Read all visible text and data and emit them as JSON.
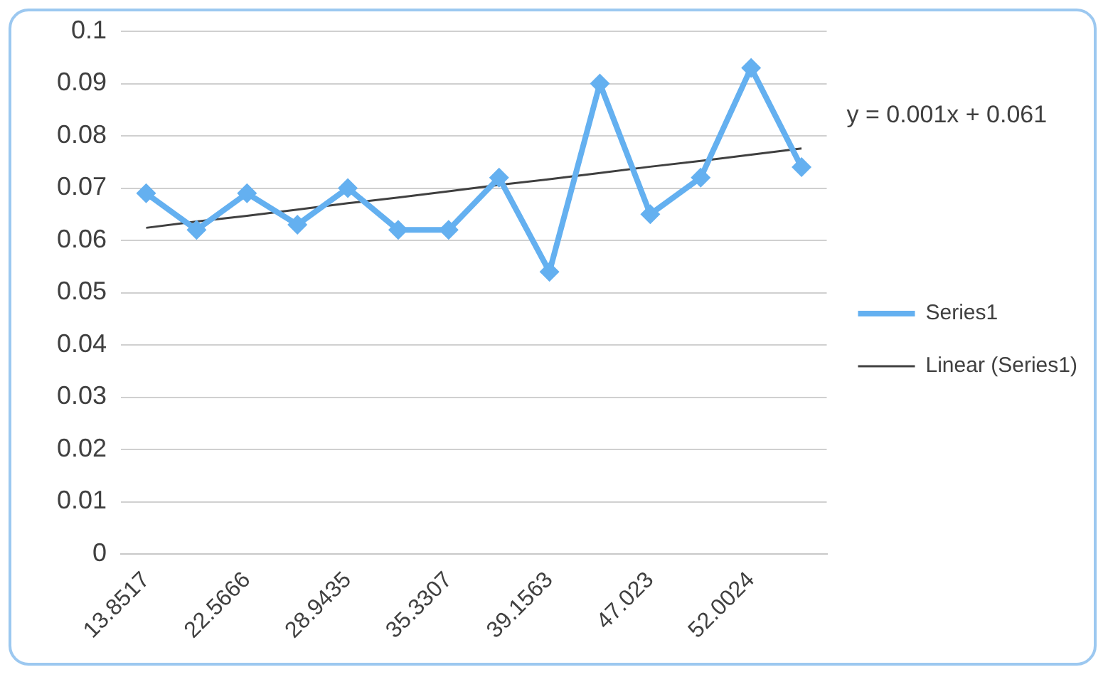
{
  "chart_data": {
    "type": "line",
    "categories": [
      "13.8517",
      null,
      "22.5666",
      null,
      "28.9435",
      null,
      "35.3307",
      null,
      "39.1563",
      null,
      "47.023",
      null,
      "52.0024",
      null
    ],
    "series": [
      {
        "name": "Series1",
        "color": "#64b0f0",
        "values": [
          0.069,
          0.062,
          0.069,
          0.063,
          0.07,
          0.062,
          0.062,
          0.072,
          0.054,
          0.09,
          0.065,
          0.072,
          0.093,
          0.074
        ],
        "marker": "diamond",
        "line_style": "solid"
      },
      {
        "name": "Linear (Series1)",
        "type": "line",
        "color": "#404040",
        "values": [
          0.0624,
          0.0636,
          0.0647,
          0.0659,
          0.0671,
          0.0682,
          0.0694,
          0.0706,
          0.0717,
          0.0729,
          0.0741,
          0.0752,
          0.0764,
          0.0776
        ],
        "marker": "none",
        "line_style": "solid"
      }
    ],
    "ylim": [
      0,
      0.1
    ],
    "yticks": [
      0,
      0.01,
      0.02,
      0.03,
      0.04,
      0.05,
      0.06,
      0.07,
      0.08,
      0.09,
      0.1
    ],
    "grid": "y",
    "legend": "right",
    "annotations": [
      "y = 0.001x + 0.061"
    ]
  }
}
